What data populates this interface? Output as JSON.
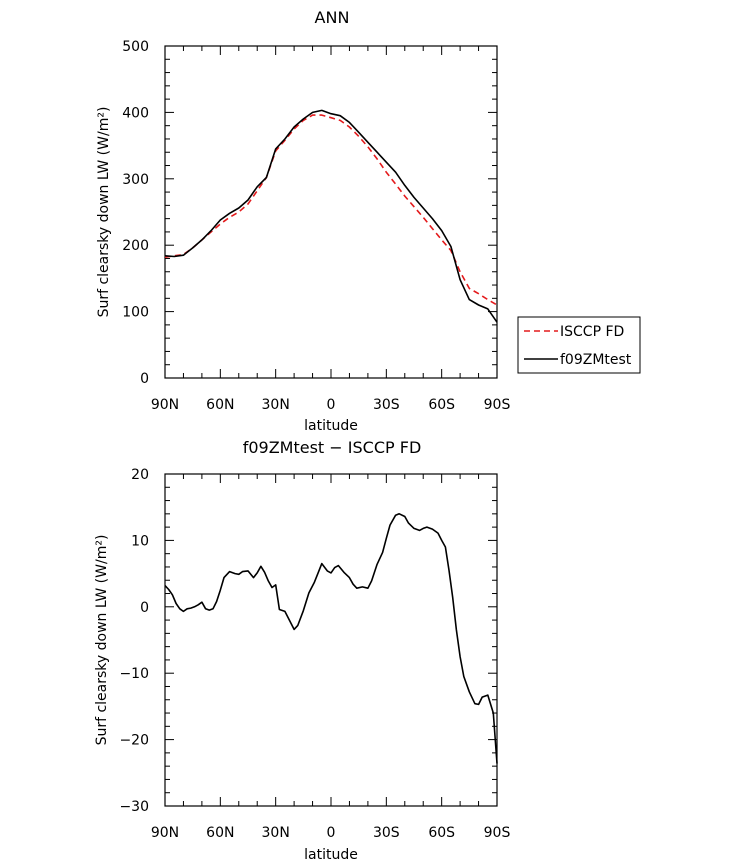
{
  "colors": {
    "isccp": "#e41a1c",
    "model": "#000000",
    "axis": "#000000"
  },
  "chart_data": [
    {
      "type": "line",
      "title": "ANN",
      "xlabel": "latitude",
      "ylabel": "Surf clearsky down LW (W/m²)",
      "xlim": [
        90,
        -90
      ],
      "ylim": [
        0,
        500
      ],
      "x_ticks": [
        90,
        60,
        30,
        0,
        -30,
        -60,
        -90
      ],
      "x_tick_labels": [
        "90N",
        "60N",
        "30N",
        "0",
        "30S",
        "60S",
        "90S"
      ],
      "y_ticks": [
        0,
        100,
        200,
        300,
        400,
        500
      ],
      "y_tick_labels": [
        "0",
        "100",
        "200",
        "300",
        "400",
        "500"
      ],
      "legend_position": "right",
      "series": [
        {
          "name": "ISCCP FD",
          "style": "dashed",
          "color": "#e41a1c",
          "x": [
            90,
            85,
            80,
            75,
            70,
            65,
            60,
            55,
            50,
            45,
            40,
            35,
            30,
            25,
            20,
            15,
            10,
            5,
            0,
            -5,
            -10,
            -15,
            -20,
            -25,
            -30,
            -35,
            -40,
            -45,
            -50,
            -55,
            -60,
            -65,
            -70,
            -75,
            -80,
            -85,
            -90
          ],
          "values": [
            182,
            184,
            186,
            196,
            208,
            220,
            232,
            242,
            250,
            262,
            282,
            302,
            342,
            358,
            375,
            388,
            396,
            396,
            392,
            388,
            378,
            364,
            348,
            330,
            310,
            292,
            274,
            258,
            242,
            225,
            208,
            192,
            160,
            135,
            127,
            118,
            110
          ]
        },
        {
          "name": "f09ZMtest",
          "style": "solid",
          "color": "#000000",
          "x": [
            90,
            85,
            80,
            75,
            70,
            65,
            60,
            55,
            50,
            45,
            40,
            35,
            30,
            25,
            20,
            15,
            10,
            5,
            0,
            -5,
            -10,
            -15,
            -20,
            -25,
            -30,
            -35,
            -40,
            -45,
            -50,
            -55,
            -60,
            -65,
            -70,
            -75,
            -80,
            -85,
            -90
          ],
          "values": [
            184,
            183,
            185,
            196,
            208,
            222,
            238,
            248,
            256,
            268,
            288,
            302,
            345,
            360,
            378,
            390,
            400,
            403,
            398,
            395,
            385,
            370,
            355,
            340,
            325,
            310,
            290,
            272,
            256,
            240,
            222,
            198,
            148,
            118,
            110,
            104,
            84
          ]
        }
      ]
    },
    {
      "type": "line",
      "title": "f09ZMtest − ISCCP FD",
      "xlabel": "latitude",
      "ylabel": "Surf clearsky down LW (W/m²)",
      "xlim": [
        90,
        -90
      ],
      "ylim": [
        -30,
        20
      ],
      "x_ticks": [
        90,
        60,
        30,
        0,
        -30,
        -60,
        -90
      ],
      "x_tick_labels": [
        "90N",
        "60N",
        "30N",
        "0",
        "30S",
        "60S",
        "90S"
      ],
      "y_ticks": [
        -30,
        -20,
        -10,
        0,
        10,
        20
      ],
      "y_tick_labels": [
        "−30",
        "−20",
        "−10",
        "0",
        "10",
        "20"
      ],
      "series": [
        {
          "style": "solid",
          "color": "#000000",
          "x": [
            90,
            88,
            86,
            84,
            82,
            80,
            78,
            76,
            74,
            72,
            70,
            68,
            66,
            64,
            62,
            60,
            58,
            55,
            52,
            50,
            48,
            45,
            42,
            40,
            38,
            36,
            34,
            32,
            30,
            28,
            25,
            22,
            20,
            18,
            15,
            12,
            9,
            7,
            5,
            2,
            0,
            -2,
            -4,
            -7,
            -10,
            -12,
            -14,
            -17,
            -20,
            -22,
            -25,
            -28,
            -30,
            -32,
            -35,
            -37,
            -40,
            -42,
            -45,
            -48,
            -50,
            -52,
            -55,
            -58,
            -60,
            -62,
            -64,
            -66,
            -68,
            -70,
            -72,
            -75,
            -78,
            -80,
            -82,
            -85,
            -88,
            -90
          ],
          "values": [
            3.2,
            2.6,
            1.8,
            0.5,
            -0.3,
            -0.7,
            -0.3,
            -0.2,
            0,
            0.3,
            0.7,
            -0.3,
            -0.5,
            -0.3,
            0.8,
            2.5,
            4.4,
            5.3,
            5.0,
            4.9,
            5.3,
            5.4,
            4.4,
            5.1,
            6.1,
            5.2,
            3.9,
            2.9,
            3.3,
            -0.4,
            -0.7,
            -2.3,
            -3.4,
            -2.8,
            -0.6,
            2.1,
            3.7,
            5.1,
            6.5,
            5.4,
            5.1,
            5.9,
            6.2,
            5.2,
            4.4,
            3.4,
            2.8,
            3.0,
            2.8,
            3.9,
            6.4,
            8.2,
            10.3,
            12.3,
            13.8,
            14.0,
            13.6,
            12.6,
            11.8,
            11.5,
            11.8,
            12.0,
            11.7,
            11.1,
            10.0,
            9.0,
            5.5,
            1.4,
            -3.5,
            -7.5,
            -10.5,
            -12.8,
            -14.6,
            -14.7,
            -13.6,
            -13.3,
            -16.0,
            -23.6
          ]
        }
      ]
    }
  ]
}
